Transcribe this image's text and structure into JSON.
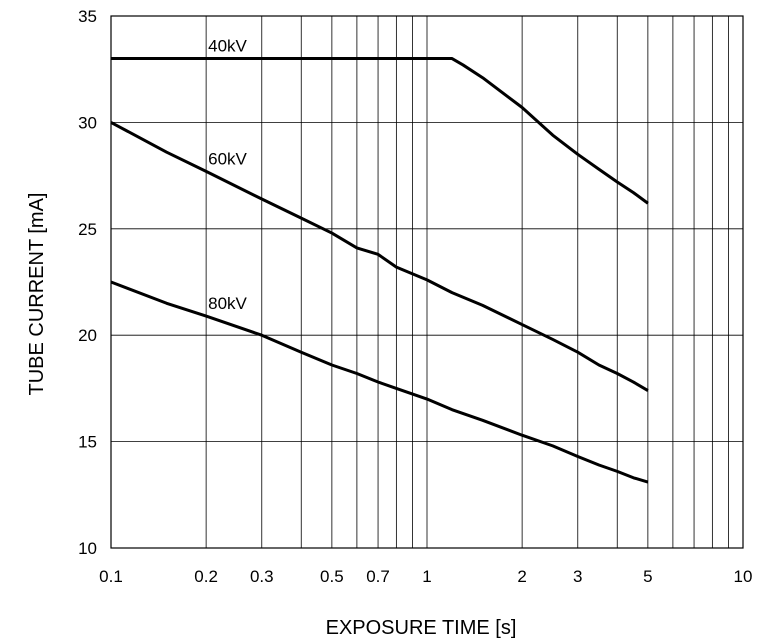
{
  "chart_data": {
    "type": "line",
    "xlabel": "EXPOSURE TIME  [s]",
    "ylabel": "TUBE CURRENT  [mA]",
    "xscale": "log",
    "xlim": [
      0.1,
      10
    ],
    "ylim": [
      10,
      35
    ],
    "grid": true,
    "x_tick_values": [
      0.1,
      0.2,
      0.3,
      0.5,
      0.7,
      1,
      2,
      3,
      5,
      10
    ],
    "x_tick_labels": [
      "0.1",
      "0.2",
      "0.3",
      "0.5",
      "0.7",
      "1",
      "2",
      "3",
      "5",
      "10"
    ],
    "y_tick_values": [
      10,
      15,
      20,
      25,
      30,
      35
    ],
    "y_tick_labels": [
      "10",
      "15",
      "20",
      "25",
      "30",
      "35"
    ],
    "series": [
      {
        "name": "40kV",
        "x": [
          0.1,
          0.2,
          0.5,
          1,
          1.2,
          1.3,
          1.5,
          2,
          2.5,
          3,
          3.5,
          4,
          4.5,
          5
        ],
        "y": [
          33,
          33,
          33,
          33,
          33,
          32.7,
          32.1,
          30.7,
          29.4,
          28.5,
          27.8,
          27.2,
          26.7,
          26.2
        ]
      },
      {
        "name": "60kV",
        "x": [
          0.1,
          0.15,
          0.2,
          0.3,
          0.4,
          0.5,
          0.6,
          0.7,
          0.8,
          1,
          1.2,
          1.5,
          2,
          2.5,
          3,
          3.5,
          4,
          4.5,
          5
        ],
        "y": [
          30,
          28.6,
          27.7,
          26.4,
          25.5,
          24.8,
          24.1,
          23.8,
          23.2,
          22.6,
          22.0,
          21.4,
          20.5,
          19.8,
          19.2,
          18.6,
          18.2,
          17.8,
          17.4
        ]
      },
      {
        "name": "80kV",
        "x": [
          0.1,
          0.15,
          0.2,
          0.3,
          0.4,
          0.5,
          0.6,
          0.7,
          0.8,
          1,
          1.2,
          1.5,
          2,
          2.5,
          3,
          3.5,
          4,
          4.5,
          5
        ],
        "y": [
          22.5,
          21.5,
          20.9,
          20.0,
          19.2,
          18.6,
          18.2,
          17.8,
          17.5,
          17.0,
          16.5,
          16.0,
          15.3,
          14.8,
          14.3,
          13.9,
          13.6,
          13.3,
          13.1
        ]
      }
    ],
    "annotations": [
      {
        "text": "40kV",
        "x": 0.2,
        "y": 33
      },
      {
        "text": "60kV",
        "x": 0.2,
        "y": 27.7
      },
      {
        "text": "80kV",
        "x": 0.2,
        "y": 20.9
      }
    ]
  }
}
